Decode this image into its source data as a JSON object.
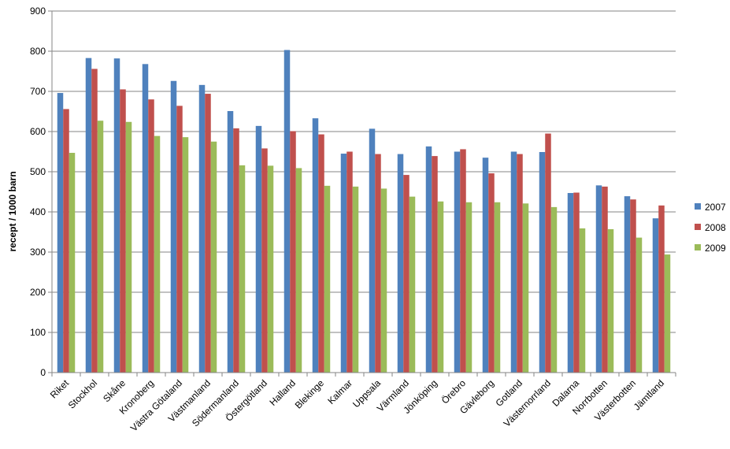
{
  "chart_data": {
    "type": "bar",
    "ylabel": "recept / 1000 barn",
    "ylim": [
      0,
      900
    ],
    "yticks": [
      0,
      100,
      200,
      300,
      400,
      500,
      600,
      700,
      800,
      900
    ],
    "grid": true,
    "legend_position": "right",
    "categories": [
      "Riket",
      "Stockhol",
      "Skåne",
      "Kronoberg",
      "Västra Götaland",
      "Västmanland",
      "Södermanland",
      "Östergötland",
      "Halland",
      "Blekinge",
      "Kalmar",
      "Uppsala",
      "Värmland",
      "Jönköping",
      "Örebro",
      "Gävleborg",
      "Gotland",
      "Västernorrland",
      "Dalarna",
      "Norrbotten",
      "Västerbotten",
      "Jämtland"
    ],
    "series": [
      {
        "name": "2007",
        "color": "#4F81BD",
        "values": [
          696,
          783,
          782,
          768,
          726,
          716,
          651,
          614,
          803,
          633,
          545,
          607,
          544,
          563,
          550,
          535,
          550,
          549,
          447,
          466,
          439,
          384
        ]
      },
      {
        "name": "2008",
        "color": "#C0504D",
        "values": [
          656,
          756,
          705,
          680,
          664,
          694,
          608,
          558,
          601,
          593,
          550,
          544,
          492,
          539,
          556,
          496,
          544,
          595,
          448,
          463,
          431,
          416
        ]
      },
      {
        "name": "2009",
        "color": "#9BBB59",
        "values": [
          547,
          627,
          624,
          589,
          586,
          575,
          516,
          515,
          509,
          465,
          463,
          458,
          438,
          426,
          424,
          424,
          421,
          412,
          359,
          357,
          336,
          294
        ]
      }
    ]
  }
}
